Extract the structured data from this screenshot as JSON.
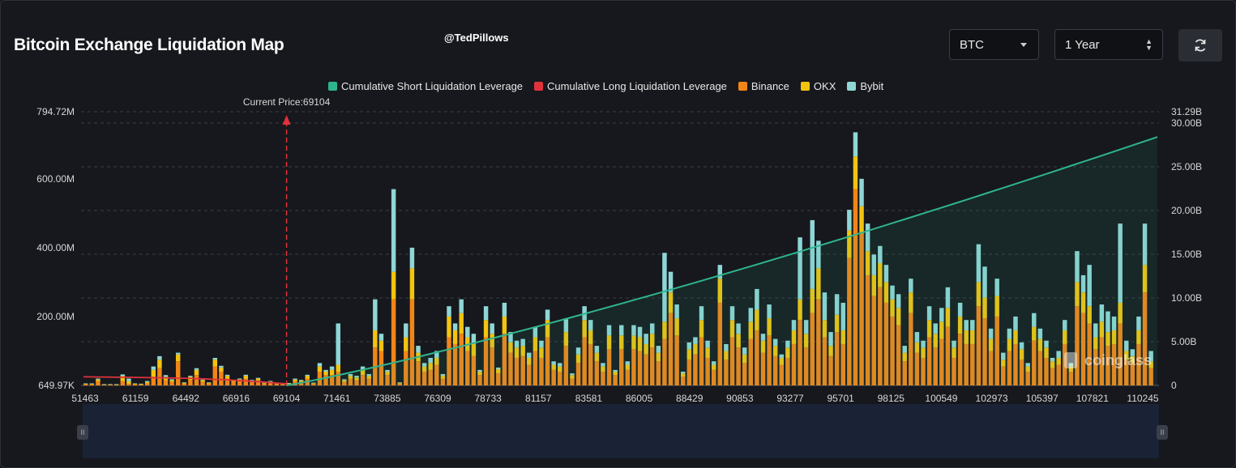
{
  "header": {
    "title": "Bitcoin Exchange Liquidation Map",
    "watermark": "@TedPillows",
    "coin_select": "BTC",
    "range_select": "1 Year",
    "refresh_icon": "refresh-icon"
  },
  "logo_text": "coinglass",
  "colors": {
    "short_line": "#2fb58c",
    "long_line": "#e0323c",
    "binance": "#f28518",
    "okx": "#f2c40f",
    "bybit": "#8fd6d6"
  },
  "chart_data": {
    "type": "bar",
    "title": "Bitcoin Exchange Liquidation Map",
    "legend": [
      {
        "name": "Cumulative Short Liquidation Leverage",
        "color": "#2fb58c"
      },
      {
        "name": "Cumulative Long Liquidation Leverage",
        "color": "#e0323c"
      },
      {
        "name": "Binance",
        "color": "#f28518"
      },
      {
        "name": "OKX",
        "color": "#f2c40f"
      },
      {
        "name": "Bybit",
        "color": "#8fd6d6"
      }
    ],
    "legend_position": "top-center",
    "current_price_label": "Current Price:69104",
    "current_price": 69104,
    "x_tick_labels": [
      "51463",
      "61159",
      "64492",
      "66916",
      "69104",
      "71461",
      "73885",
      "76309",
      "78733",
      "81157",
      "83581",
      "86005",
      "88429",
      "90853",
      "93277",
      "95701",
      "98125",
      "100549",
      "102973",
      "105397",
      "107821",
      "110245"
    ],
    "y_left_labels": [
      "794.72M",
      "600.00M",
      "400.00M",
      "200.00M",
      "649.97K"
    ],
    "y_left_values": [
      794.72,
      600,
      400,
      200,
      0
    ],
    "y_left_range": [
      0,
      794.72
    ],
    "y_right_labels": [
      "31.29B",
      "30.00B",
      "25.00B",
      "20.00B",
      "15.00B",
      "10.00B",
      "5.00B",
      "0"
    ],
    "y_right_values": [
      31.29,
      30,
      25,
      20,
      15,
      10,
      5,
      0
    ],
    "y_right_range": [
      0,
      31.29
    ],
    "bars_stacked": {
      "binance": [
        3,
        3,
        12,
        2,
        2,
        2,
        12,
        4,
        3,
        2,
        6,
        25,
        50,
        15,
        10,
        70,
        5,
        15,
        30,
        10,
        5,
        55,
        40,
        20,
        10,
        12,
        20,
        10,
        15,
        5,
        8,
        5,
        3,
        4,
        12,
        10,
        20,
        5,
        40,
        30,
        30,
        40,
        10,
        20,
        15,
        30,
        20,
        110,
        100,
        30,
        250,
        5,
        100,
        250,
        70,
        40,
        45,
        60,
        20,
        140,
        120,
        150,
        100,
        85,
        30,
        140,
        110,
        35,
        150,
        95,
        80,
        85,
        60,
        100,
        80,
        140,
        45,
        40,
        115,
        20,
        65,
        140,
        120,
        70,
        40,
        105,
        30,
        105,
        45,
        105,
        100,
        90,
        110,
        70,
        135,
        210,
        145,
        25,
        75,
        90,
        140,
        80,
        45,
        240,
        75,
        140,
        110,
        65,
        135,
        160,
        95,
        145,
        85,
        60,
        80,
        120,
        190,
        110,
        210,
        250,
        140,
        85,
        155,
        120,
        370,
        570,
        440,
        320,
        260,
        285,
        240,
        200,
        175,
        70,
        210,
        95,
        80,
        140,
        110,
        135,
        170,
        80,
        150,
        120,
        120,
        230,
        195,
        100,
        200,
        55,
        100,
        120,
        75,
        40,
        130,
        100,
        80,
        50,
        60,
        120,
        40,
        230,
        210,
        180,
        105,
        140,
        115,
        120,
        180,
        75,
        65,
        120,
        270,
        50
      ],
      "okx": [
        2,
        2,
        5,
        1,
        1,
        1,
        15,
        8,
        2,
        2,
        4,
        20,
        25,
        10,
        5,
        20,
        3,
        10,
        15,
        5,
        3,
        20,
        12,
        8,
        4,
        6,
        8,
        4,
        5,
        2,
        3,
        2,
        2,
        2,
        5,
        4,
        8,
        2,
        15,
        10,
        15,
        20,
        5,
        8,
        8,
        15,
        8,
        50,
        30,
        10,
        80,
        3,
        40,
        90,
        25,
        15,
        20,
        20,
        8,
        60,
        40,
        60,
        40,
        35,
        10,
        50,
        40,
        12,
        50,
        30,
        30,
        30,
        20,
        40,
        30,
        50,
        15,
        15,
        40,
        10,
        25,
        50,
        40,
        25,
        15,
        40,
        10,
        40,
        15,
        40,
        40,
        30,
        40,
        25,
        50,
        60,
        50,
        10,
        30,
        30,
        50,
        30,
        15,
        70,
        25,
        50,
        40,
        25,
        50,
        60,
        35,
        50,
        30,
        20,
        30,
        40,
        60,
        40,
        70,
        90,
        50,
        30,
        50,
        40,
        80,
        95,
        80,
        70,
        60,
        70,
        60,
        50,
        50,
        25,
        60,
        30,
        30,
        50,
        40,
        50,
        55,
        30,
        50,
        40,
        40,
        70,
        60,
        35,
        60,
        20,
        35,
        40,
        30,
        15,
        40,
        35,
        30,
        20,
        20,
        40,
        15,
        70,
        60,
        50,
        35,
        45,
        40,
        40,
        60,
        25,
        20,
        40,
        80,
        20
      ],
      "bybit": [
        1,
        1,
        3,
        1,
        1,
        1,
        5,
        8,
        1,
        1,
        3,
        10,
        10,
        5,
        3,
        5,
        1,
        3,
        5,
        2,
        1,
        5,
        5,
        3,
        2,
        2,
        3,
        2,
        2,
        1,
        2,
        1,
        1,
        1,
        3,
        2,
        3,
        1,
        10,
        5,
        10,
        120,
        3,
        5,
        5,
        10,
        5,
        90,
        20,
        5,
        240,
        1,
        40,
        60,
        20,
        10,
        15,
        20,
        5,
        30,
        20,
        40,
        30,
        30,
        5,
        40,
        30,
        5,
        40,
        30,
        20,
        20,
        15,
        30,
        20,
        30,
        10,
        10,
        40,
        5,
        20,
        40,
        30,
        20,
        10,
        30,
        5,
        30,
        10,
        30,
        30,
        30,
        30,
        20,
        200,
        60,
        40,
        5,
        20,
        20,
        40,
        20,
        10,
        40,
        20,
        40,
        30,
        20,
        40,
        60,
        20,
        40,
        20,
        10,
        20,
        30,
        180,
        40,
        200,
        80,
        80,
        40,
        60,
        80,
        60,
        70,
        80,
        80,
        60,
        50,
        50,
        40,
        40,
        20,
        40,
        30,
        20,
        40,
        30,
        40,
        60,
        20,
        40,
        30,
        30,
        110,
        90,
        30,
        50,
        20,
        30,
        40,
        20,
        10,
        40,
        30,
        20,
        10,
        20,
        30,
        10,
        90,
        50,
        120,
        40,
        50,
        60,
        40,
        230,
        30,
        20,
        40,
        120,
        30
      ]
    },
    "cumulative_short_line": {
      "start": 69104,
      "start_value_b": 0,
      "end_value_b": 28.4
    },
    "cumulative_long_line": {
      "start_value_m": 25,
      "end_price": 69104
    }
  }
}
